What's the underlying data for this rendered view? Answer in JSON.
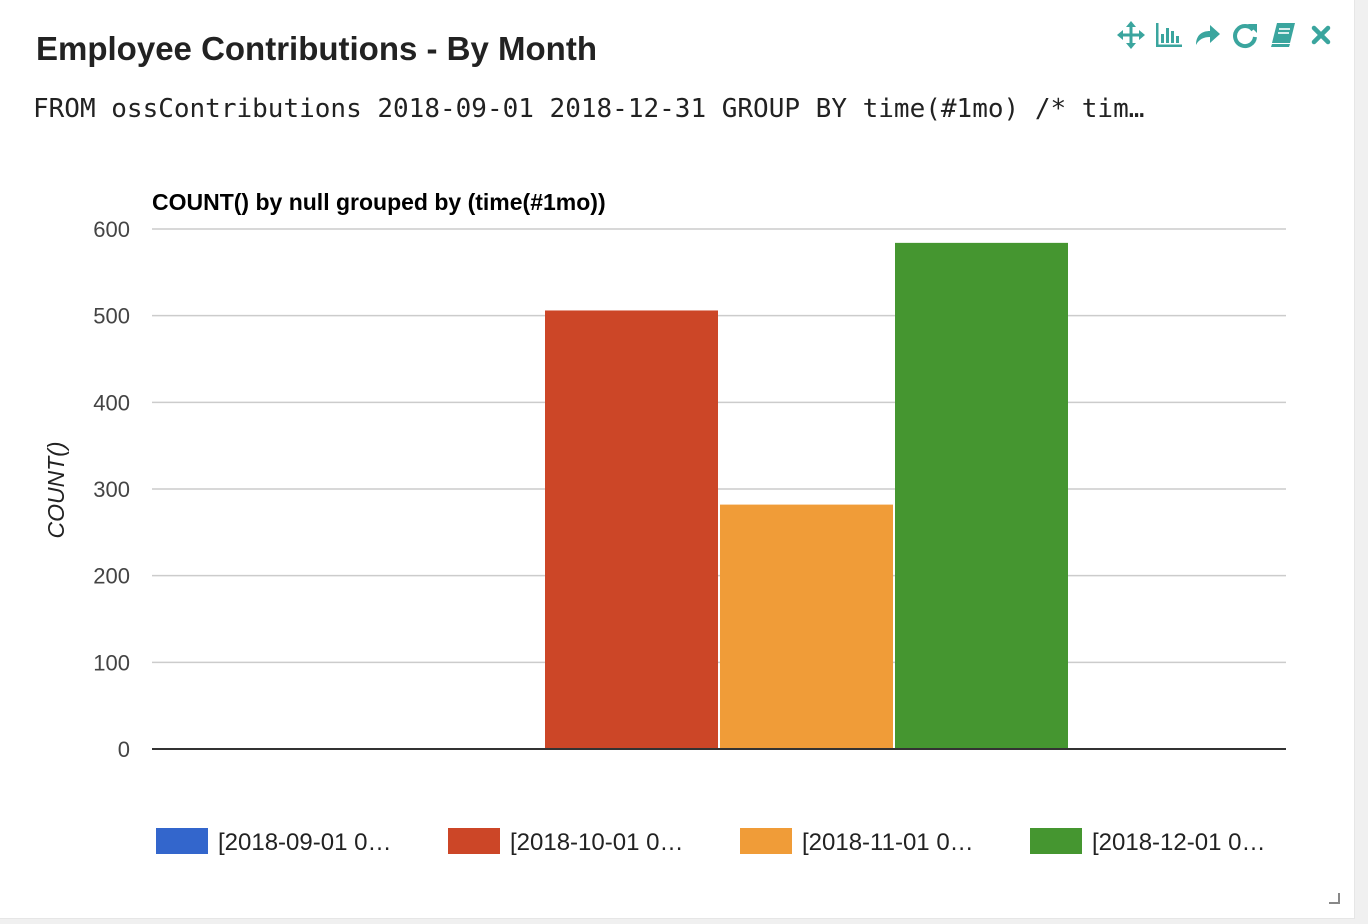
{
  "panel": {
    "title": "Employee Contributions - By Month",
    "query": "FROM ossContributions 2018-09-01 2018-12-31 GROUP BY time(#1mo) /* tim…",
    "accent_color": "#3aa59e"
  },
  "toolbar": {
    "icons": [
      "move-icon",
      "bar-chart-icon",
      "share-icon",
      "refresh-icon",
      "notebook-icon",
      "close-icon"
    ]
  },
  "chart_data": {
    "type": "bar",
    "title": "COUNT() by null grouped by (time(#1mo))",
    "ylabel": "COUNT()",
    "xlabel": "",
    "ylim": [
      0,
      600
    ],
    "yticks": [
      0,
      100,
      200,
      300,
      400,
      500,
      600
    ],
    "grid": true,
    "legend_position": "bottom",
    "series": [
      {
        "name": "[2018-09-01 0…",
        "value": 0,
        "color": "#3366cc"
      },
      {
        "name": "[2018-10-01 0…",
        "value": 506,
        "color": "#cc4627"
      },
      {
        "name": "[2018-11-01 0…",
        "value": 282,
        "color": "#f09c38"
      },
      {
        "name": "[2018-12-01 0…",
        "value": 584,
        "color": "#459630"
      }
    ]
  }
}
